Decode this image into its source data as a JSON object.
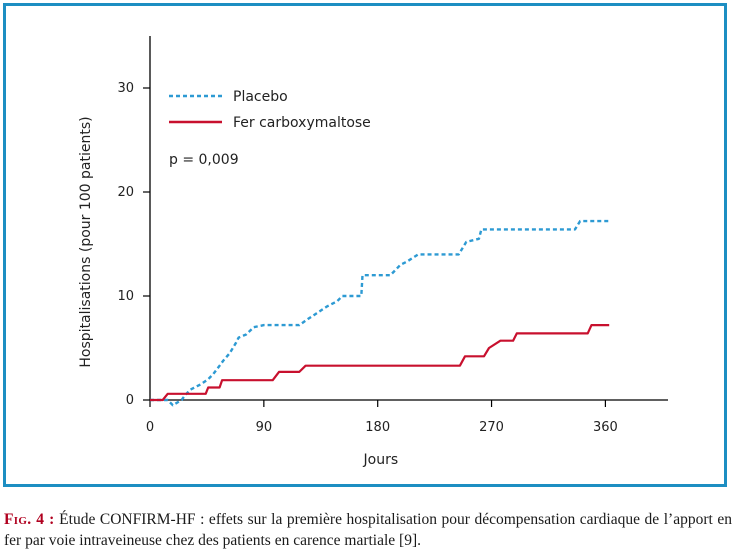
{
  "chart_data": {
    "type": "line",
    "xlabel": "Jours",
    "ylabel": "Hospitalisations (pour 100 patients)",
    "xlim": [
      0,
      400
    ],
    "ylim": [
      0,
      35
    ],
    "xticks": [
      0,
      90,
      180,
      270,
      360
    ],
    "yticks": [
      0,
      10,
      20,
      30
    ],
    "annotation": "p = 0,009",
    "legend_position": "top-left",
    "series": [
      {
        "name": "Placebo",
        "style": "dotted",
        "color": "#2d9ad3",
        "points": [
          [
            0,
            0
          ],
          [
            14,
            0
          ],
          [
            18,
            -0.5
          ],
          [
            25,
            0
          ],
          [
            28,
            0.5
          ],
          [
            32,
            1
          ],
          [
            40,
            1.5
          ],
          [
            46,
            2
          ],
          [
            50,
            2.5
          ],
          [
            55,
            3.3
          ],
          [
            58,
            3.8
          ],
          [
            63,
            4.5
          ],
          [
            68,
            5.5
          ],
          [
            70,
            6
          ],
          [
            76,
            6.3
          ],
          [
            82,
            7
          ],
          [
            90,
            7.2
          ],
          [
            100,
            7.2
          ],
          [
            118,
            7.2
          ],
          [
            125,
            7.8
          ],
          [
            130,
            8.2
          ],
          [
            140,
            9
          ],
          [
            148,
            9.5
          ],
          [
            152,
            10
          ],
          [
            167,
            10
          ],
          [
            168,
            12
          ],
          [
            190,
            12
          ],
          [
            198,
            13
          ],
          [
            203,
            13.3
          ],
          [
            212,
            14
          ],
          [
            244,
            14
          ],
          [
            250,
            15.2
          ],
          [
            260,
            15.5
          ],
          [
            262,
            16.4
          ],
          [
            336,
            16.4
          ],
          [
            340,
            17.2
          ],
          [
            363,
            17.2
          ]
        ]
      },
      {
        "name": "Fer carboxymaltose",
        "style": "solid",
        "color": "#c8102e",
        "points": [
          [
            0,
            0
          ],
          [
            10,
            0
          ],
          [
            14,
            0.6
          ],
          [
            44,
            0.6
          ],
          [
            46,
            1.2
          ],
          [
            55,
            1.2
          ],
          [
            57,
            1.9
          ],
          [
            97,
            1.9
          ],
          [
            102,
            2.7
          ],
          [
            118,
            2.7
          ],
          [
            123,
            3.3
          ],
          [
            245,
            3.3
          ],
          [
            249,
            4.2
          ],
          [
            264,
            4.2
          ],
          [
            268,
            5
          ],
          [
            277,
            5.7
          ],
          [
            287,
            5.7
          ],
          [
            290,
            6.4
          ],
          [
            346,
            6.4
          ],
          [
            349,
            7.2
          ],
          [
            363,
            7.2
          ]
        ]
      }
    ]
  },
  "caption": {
    "label": "Fig. 4 :",
    "text": " Étude CONFIRM-HF : effets sur la première hospitalisation pour décompensation cardiaque de l’apport en fer par voie intraveineuse chez des patients en carence martiale [9]."
  }
}
